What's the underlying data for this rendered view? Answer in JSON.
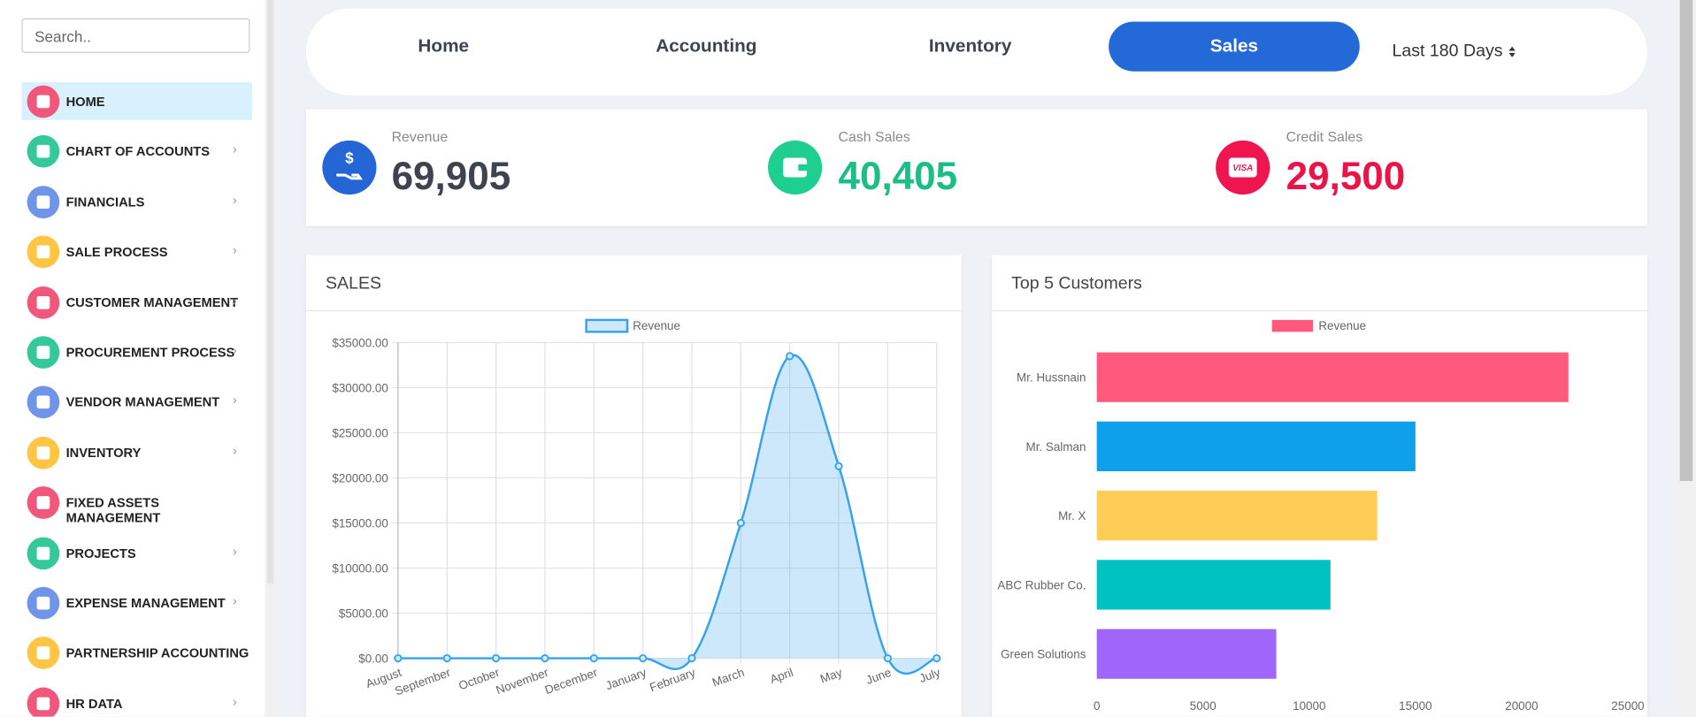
{
  "sidebar": {
    "search_placeholder": "Search..",
    "items": [
      "HOME",
      "CHART OF ACCOUNTS",
      "FINANCIALS",
      "SALE PROCESS",
      "CUSTOMER MANAGEMENT",
      "PROCUREMENT PROCESS",
      "VENDOR MANAGEMENT",
      "INVENTORY",
      "FIXED ASSETS MANAGEMENT",
      "PROJECTS",
      "EXPENSE MANAGEMENT",
      "PARTNERSHIP ACCOUNTING",
      "HR DATA"
    ]
  },
  "tabs": [
    "Home",
    "Accounting",
    "Inventory",
    "Sales"
  ],
  "period_select": "Last 180 Days",
  "stats": [
    {
      "label": "Revenue",
      "value": "69,905"
    },
    {
      "label": "Cash Sales",
      "value": "40,405"
    },
    {
      "label": "Credit Sales",
      "value": "29,500"
    }
  ],
  "chart_data": [
    {
      "type": "line",
      "title": "SALES",
      "categories": [
        "August",
        "September",
        "October",
        "November",
        "December",
        "January",
        "February",
        "March",
        "April",
        "May",
        "June",
        "July"
      ],
      "series": [
        {
          "name": "Revenue",
          "color": "#36a2eb",
          "values": [
            0,
            0,
            0,
            0,
            0,
            0,
            0,
            15000,
            33500,
            21300,
            0,
            0
          ]
        }
      ],
      "ylim": [
        0,
        35000
      ],
      "yticks": [
        {
          "value": 0,
          "label": "$0.00"
        },
        {
          "value": 5000,
          "label": "$5000.00"
        },
        {
          "value": 10000,
          "label": "$10000.00"
        },
        {
          "value": 15000,
          "label": "$15000.00"
        },
        {
          "value": 20000,
          "label": "$20000.00"
        },
        {
          "value": 25000,
          "label": "$25000.00"
        },
        {
          "value": 30000,
          "label": "$30000.00"
        },
        {
          "value": 35000,
          "label": "$35000.00"
        }
      ],
      "grid": true
    },
    {
      "type": "bar",
      "orientation": "horizontal",
      "title": "Top 5 Customers",
      "categories": [
        "Mr. Hussnain",
        "Mr. Salman",
        "Mr. X",
        "ABC Rubber Co.",
        "Green Solutions"
      ],
      "series": [
        {
          "name": "Revenue",
          "colors": [
            "#ff5a7e",
            "#0ea0ea",
            "#ffcd56",
            "#00c2c2",
            "#a066fa"
          ],
          "values": [
            22200,
            15000,
            13200,
            11000,
            8450
          ]
        }
      ],
      "xlim": [
        0,
        25000
      ],
      "xticks": [
        0,
        5000,
        10000,
        15000,
        20000,
        25000
      ]
    }
  ]
}
